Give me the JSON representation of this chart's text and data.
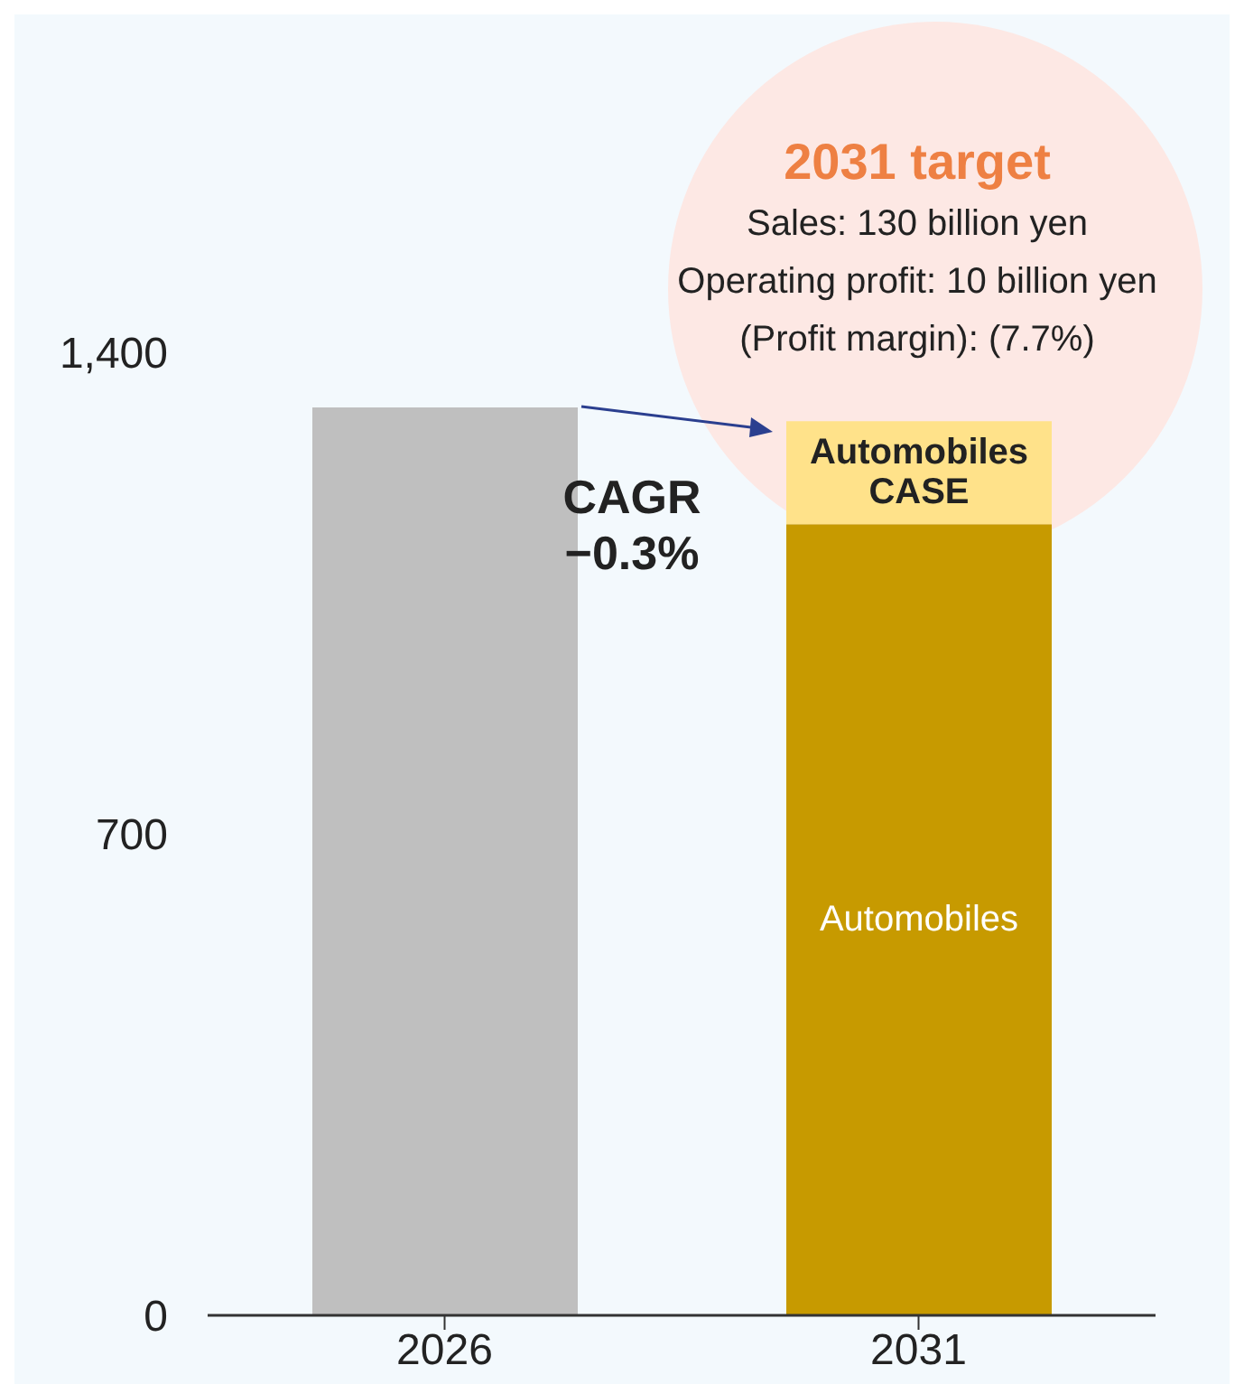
{
  "chart_data": {
    "type": "bar",
    "stacked": true,
    "categories": [
      "2026",
      "2031"
    ],
    "series": [
      {
        "color": "#bfbfbf",
        "values": [
          1320,
          null
        ]
      },
      {
        "name": "Automobiles",
        "color": "#c79a00",
        "values": [
          null,
          1150
        ]
      },
      {
        "name": "Automobiles CASE",
        "color": "#ffe28a",
        "values": [
          null,
          150
        ]
      }
    ],
    "ylim": [
      0,
      1400
    ],
    "yticks": [
      0,
      700,
      {
        "value": 1400,
        "label": "1,400"
      }
    ],
    "grid": false,
    "legend": false,
    "annotations": [
      "2031 target",
      "Sales: 130 billion yen",
      "Operating profit: 10 billion yen",
      "(Profit margin): (7.7%)",
      "CAGR −0.3%"
    ]
  }
}
